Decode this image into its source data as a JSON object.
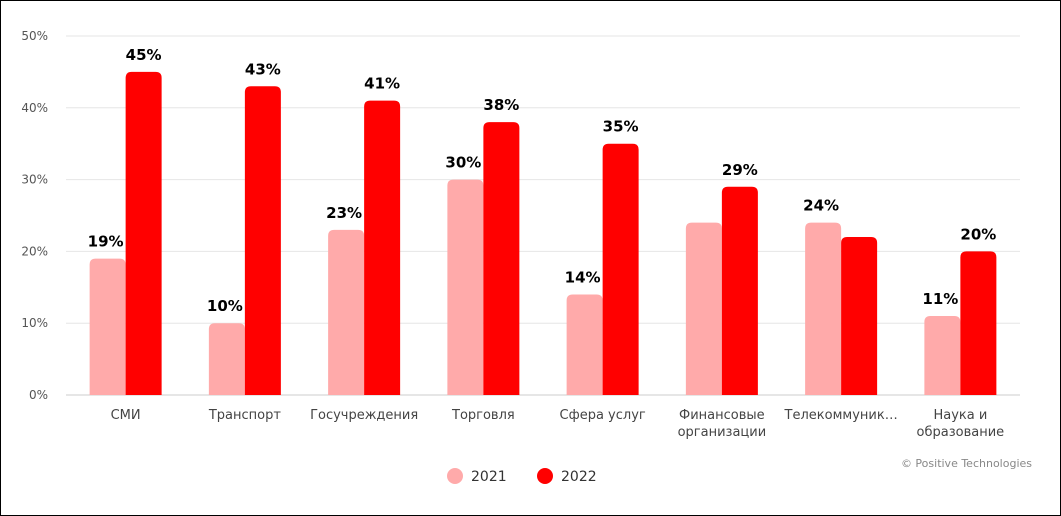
{
  "chart_data": {
    "type": "bar",
    "categories": [
      [
        "СМИ"
      ],
      [
        "Транспорт"
      ],
      [
        "Госучреждения"
      ],
      [
        "Торговля"
      ],
      [
        "Сфера услуг"
      ],
      [
        "Финансовые",
        "организации"
      ],
      [
        "Телекоммуник…"
      ],
      [
        "Наука и",
        "образование"
      ]
    ],
    "series": [
      {
        "name": "2021",
        "color": "#ffaaaa",
        "values": [
          19,
          10,
          23,
          30,
          14,
          24,
          24,
          11
        ],
        "data_labels": [
          "19%",
          "10%",
          "23%",
          "30%",
          "14%",
          null,
          "24%",
          "11%"
        ]
      },
      {
        "name": "2022",
        "color": "#ff0000",
        "values": [
          45,
          43,
          41,
          38,
          35,
          29,
          22,
          20
        ],
        "data_labels": [
          "45%",
          "43%",
          "41%",
          "38%",
          "35%",
          "29%",
          null,
          "20%"
        ]
      }
    ],
    "y_ticks": [
      "0%",
      "10%",
      "20%",
      "30%",
      "40%",
      "50%"
    ],
    "ylim": [
      0,
      50
    ],
    "grid": true,
    "legend": "bottom-center",
    "credit": "© Positive Technologies"
  }
}
